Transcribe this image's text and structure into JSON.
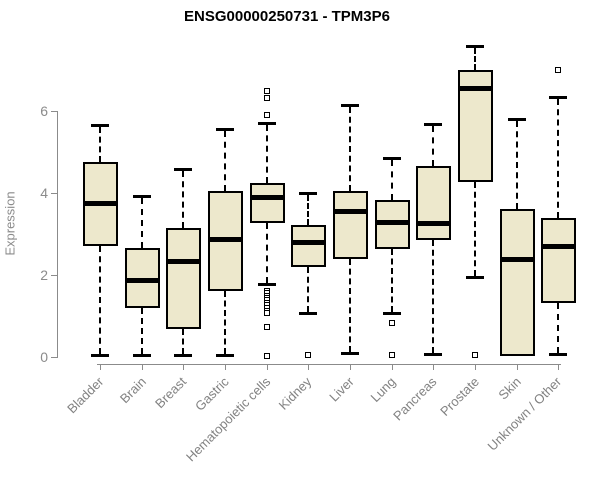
{
  "chart_data": {
    "type": "boxplot",
    "title": "ENSG00000250731 - TPM3P6",
    "ylabel": "Expression",
    "xlabel": "",
    "yticks": [
      0,
      2,
      4,
      6
    ],
    "ylim": [
      0,
      7.8
    ],
    "grid": false,
    "legend": "none",
    "categories": [
      "Bladder",
      "Brain",
      "Breast",
      "Gastric",
      "Hematopoietic cells",
      "Kidney",
      "Liver",
      "Lung",
      "Pancreas",
      "Prostate",
      "Skin",
      "Unknown / Other"
    ],
    "boxes": [
      {
        "label": "Bladder",
        "whisker_low": 0.02,
        "q1": 2.7,
        "median": 3.75,
        "q3": 4.75,
        "whisker_high": 5.65,
        "outliers": []
      },
      {
        "label": "Brain",
        "whisker_low": 0.02,
        "q1": 1.2,
        "median": 1.88,
        "q3": 2.65,
        "whisker_high": 3.92,
        "outliers": []
      },
      {
        "label": "Breast",
        "whisker_low": 0.02,
        "q1": 0.68,
        "median": 2.35,
        "q3": 3.15,
        "whisker_high": 4.58,
        "outliers": []
      },
      {
        "label": "Gastric",
        "whisker_low": 0.02,
        "q1": 1.6,
        "median": 2.87,
        "q3": 4.05,
        "whisker_high": 5.55,
        "outliers": []
      },
      {
        "label": "Hematopoietic cells",
        "whisker_low": 1.75,
        "q1": 3.27,
        "median": 3.9,
        "q3": 4.25,
        "whisker_high": 5.7,
        "outliers": [
          6.5,
          6.32,
          5.9,
          1.62,
          1.55,
          1.5,
          1.44,
          1.38,
          1.32,
          1.26,
          1.2,
          1.13,
          1.07,
          0.73,
          0.02
        ]
      },
      {
        "label": "Kidney",
        "whisker_low": 1.05,
        "q1": 2.2,
        "median": 2.8,
        "q3": 3.22,
        "whisker_high": 4.0,
        "outliers": [
          0.05
        ]
      },
      {
        "label": "Liver",
        "whisker_low": 0.07,
        "q1": 2.4,
        "median": 3.55,
        "q3": 4.05,
        "whisker_high": 6.15,
        "outliers": []
      },
      {
        "label": "Lung",
        "whisker_low": 1.05,
        "q1": 2.63,
        "median": 3.3,
        "q3": 3.83,
        "whisker_high": 4.85,
        "outliers": [
          0.83,
          0.05
        ]
      },
      {
        "label": "Pancreas",
        "whisker_low": 0.05,
        "q1": 2.85,
        "median": 3.27,
        "q3": 4.65,
        "whisker_high": 5.68,
        "outliers": []
      },
      {
        "label": "Prostate",
        "whisker_low": 1.93,
        "q1": 4.27,
        "median": 6.55,
        "q3": 7.0,
        "whisker_high": 7.58,
        "outliers": [
          0.05
        ]
      },
      {
        "label": "Skin",
        "whisker_low": 0.02,
        "q1": 0.02,
        "median": 2.38,
        "q3": 3.6,
        "whisker_high": 5.8,
        "outliers": []
      },
      {
        "label": "Unknown / Other",
        "whisker_low": 0.05,
        "q1": 1.32,
        "median": 2.7,
        "q3": 3.38,
        "whisker_high": 6.35,
        "outliers": [
          7.0
        ]
      }
    ],
    "colors": {
      "box_fill": "#EDE8CC",
      "box_border": "#000000",
      "median": "#000000",
      "whisker": "#000000",
      "axis": "#8b8b8b",
      "tick_label": "#8b8b8b",
      "category_label": "#828282",
      "title": "#000000",
      "background": "#ffffff"
    }
  }
}
